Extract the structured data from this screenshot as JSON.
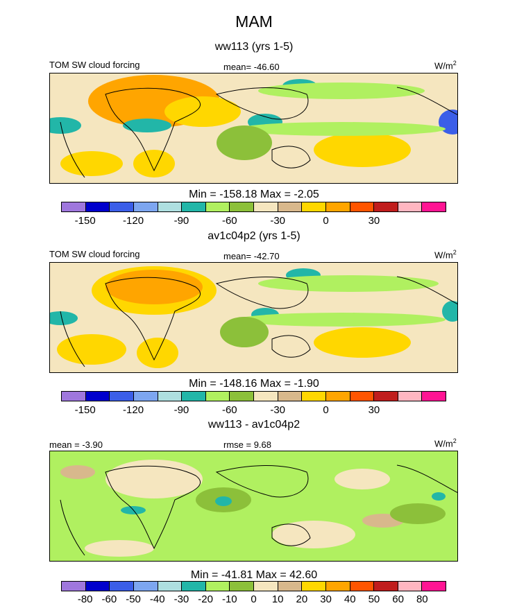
{
  "figure": {
    "season": "MAM"
  },
  "colors": {
    "panel_palette": [
      "#9f77dd",
      "#0000cc",
      "#3b5ee8",
      "#7da6f0",
      "#aedfe0",
      "#22b6a8",
      "#b0f060",
      "#8cc03a",
      "#f5e6bf",
      "#d8b88c",
      "#ffd700",
      "#ffa500",
      "#ff5500",
      "#c01d1d",
      "#ffb6c1",
      "#ff1493"
    ],
    "diff_palette": [
      "#9f77dd",
      "#0000cc",
      "#3b5ee8",
      "#7da6f0",
      "#aedfe0",
      "#22b6a8",
      "#b0f060",
      "#8cc03a",
      "#f5e6bf",
      "#d8b88c",
      "#ffd700",
      "#ffa500",
      "#ff5500",
      "#c01d1d",
      "#ffb6c1",
      "#ff1493"
    ],
    "coast": "#000000"
  },
  "chart_data": [
    {
      "type": "heatmap",
      "title": "ww113 (yrs 1-5)",
      "variable": "TOM SW cloud forcing",
      "units": "W/m",
      "units_sup": "2",
      "mean_label": "mean= -46.60",
      "minmax_label": "Min = -158.18 Max =  -2.05",
      "min": -158.18,
      "max": -2.05,
      "mean": -46.6,
      "colorbar_ticks": [
        "-150",
        "-120",
        "-90",
        "-60",
        "-30",
        "0",
        "30"
      ],
      "colorbar_tick_index": [
        1,
        3,
        5,
        7,
        9,
        11,
        13
      ]
    },
    {
      "type": "heatmap",
      "title": "av1c04p2 (yrs 1-5)",
      "variable": "TOM SW cloud forcing",
      "units": "W/m",
      "units_sup": "2",
      "mean_label": "mean= -42.70",
      "minmax_label": "Min = -148.16 Max =  -1.90",
      "min": -148.16,
      "max": -1.9,
      "mean": -42.7,
      "colorbar_ticks": [
        "-150",
        "-120",
        "-90",
        "-60",
        "-30",
        "0",
        "30"
      ],
      "colorbar_tick_index": [
        1,
        3,
        5,
        7,
        9,
        11,
        13
      ]
    },
    {
      "type": "heatmap",
      "title": "ww113 - av1c04p2",
      "units": "W/m",
      "units_sup": "2",
      "mean_label": "mean =  -3.90",
      "rmse_label": "rmse =   9.68",
      "minmax_label": "Min = -41.81 Max =  42.60",
      "min": -41.81,
      "max": 42.6,
      "mean": -3.9,
      "rmse": 9.68,
      "colorbar_ticks": [
        "-80",
        "-60",
        "-50",
        "-40",
        "-30",
        "-20",
        "-10",
        "0",
        "10",
        "20",
        "30",
        "40",
        "50",
        "60",
        "80"
      ],
      "colorbar_tick_index": [
        1,
        2,
        3,
        4,
        5,
        6,
        7,
        8,
        9,
        10,
        11,
        12,
        13,
        14,
        15
      ]
    }
  ]
}
